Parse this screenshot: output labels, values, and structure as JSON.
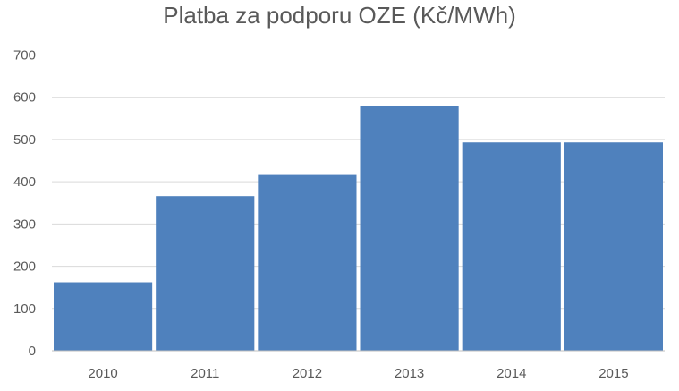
{
  "chart_data": {
    "type": "bar",
    "title": "Platba za podporu OZE (Kč/MWh)",
    "categories": [
      "2010",
      "2011",
      "2012",
      "2013",
      "2014",
      "2015"
    ],
    "values": [
      162,
      366,
      416,
      579,
      493,
      493
    ],
    "ylim": [
      0,
      700
    ],
    "yticks": [
      0,
      100,
      200,
      300,
      400,
      500,
      600,
      700
    ],
    "grid": true,
    "legend": "none",
    "bar_color": "#4F81BD",
    "grid_color": "#D9D9D9",
    "axis_color": "#BFBFBF",
    "text_color": "#595959"
  }
}
